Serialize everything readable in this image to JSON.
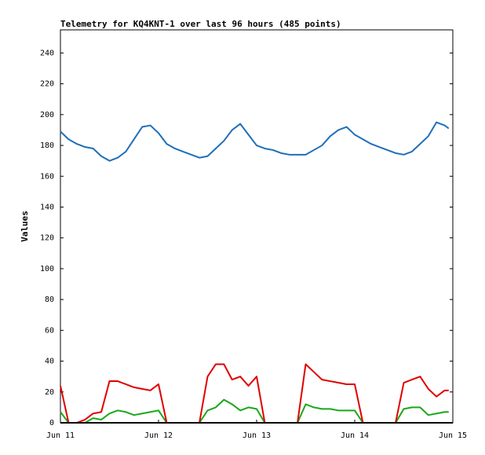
{
  "chart_data": {
    "type": "line",
    "title": "Telemetry for KQ4KNT-1 over last 96 hours (485 points)",
    "y_label": "Values",
    "x": [
      0,
      2,
      4,
      6,
      8,
      10,
      12,
      14,
      16,
      18,
      20,
      22,
      24,
      26,
      28,
      30,
      32,
      34,
      36,
      38,
      40,
      42,
      44,
      46,
      48,
      50,
      52,
      54,
      56,
      58,
      60,
      62,
      64,
      66,
      68,
      70,
      72,
      74,
      76,
      78,
      80,
      82,
      84,
      86,
      88,
      90,
      92,
      94,
      95
    ],
    "series": [
      {
        "color": "#1f6fb8",
        "values": [
          189,
          184,
          181,
          179,
          178,
          173,
          170,
          172,
          176,
          184,
          192,
          193,
          188,
          181,
          178,
          176,
          174,
          172,
          173,
          178,
          183,
          190,
          194,
          187,
          180,
          178,
          177,
          175,
          174,
          174,
          174,
          177,
          180,
          186,
          190,
          192,
          187,
          184,
          181,
          179,
          177,
          175,
          174,
          176,
          181,
          186,
          195,
          193,
          191
        ]
      },
      {
        "color": "#e00000",
        "values": [
          24,
          0,
          0,
          2,
          6,
          7,
          27,
          27,
          25,
          23,
          22,
          21,
          25,
          0,
          0,
          0,
          0,
          0,
          30,
          38,
          38,
          28,
          30,
          24,
          30,
          0,
          0,
          0,
          0,
          0,
          38,
          33,
          28,
          27,
          26,
          25,
          25,
          0,
          0,
          0,
          0,
          0,
          26,
          28,
          30,
          22,
          17,
          21,
          21
        ]
      },
      {
        "color": "#1aa81a",
        "values": [
          7,
          0,
          0,
          0,
          3,
          2,
          6,
          8,
          7,
          5,
          6,
          7,
          8,
          0,
          0,
          0,
          0,
          0,
          8,
          10,
          15,
          12,
          8,
          10,
          9,
          0,
          0,
          0,
          0,
          0,
          12,
          10,
          9,
          9,
          8,
          8,
          8,
          0,
          0,
          0,
          0,
          0,
          9,
          10,
          10,
          5,
          6,
          7,
          7
        ]
      }
    ],
    "xlim": [
      0,
      96
    ],
    "xticks": [
      {
        "value": 0,
        "label": "Jun 11"
      },
      {
        "value": 24,
        "label": "Jun 12"
      },
      {
        "value": 48,
        "label": "Jun 13"
      },
      {
        "value": 72,
        "label": "Jun 14"
      },
      {
        "value": 96,
        "label": "Jun 15"
      }
    ],
    "ylim": [
      0,
      255
    ],
    "yticks": [
      0,
      20,
      40,
      60,
      80,
      100,
      120,
      140,
      160,
      180,
      200,
      220,
      240
    ],
    "grid": false
  }
}
